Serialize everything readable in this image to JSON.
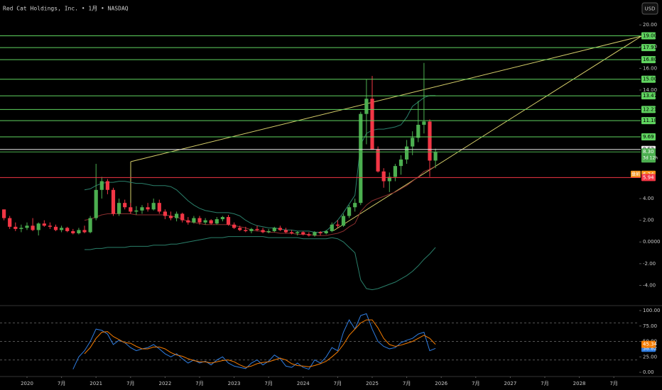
{
  "header": {
    "title": "Red Cat Holdings, Inc. • 1月 • NASDAQ",
    "currency": "USD"
  },
  "chart_data": [
    {
      "type": "candlestick",
      "x": [
        "2019-09",
        "2019-10",
        "2019-11",
        "2019-12",
        "2020-01",
        "2020-02",
        "2020-03",
        "2020-04",
        "2020-05",
        "2020-06",
        "2020-07",
        "2020-08",
        "2020-09",
        "2020-10",
        "2020-11",
        "2020-12",
        "2021-01",
        "2021-02",
        "2021-03",
        "2021-04",
        "2021-05",
        "2021-06",
        "2021-07",
        "2021-08",
        "2021-09",
        "2021-10",
        "2021-11",
        "2021-12",
        "2022-01",
        "2022-02",
        "2022-03",
        "2022-04",
        "2022-05",
        "2022-06",
        "2022-07",
        "2022-08",
        "2022-09",
        "2022-10",
        "2022-11",
        "2022-12",
        "2023-01",
        "2023-02",
        "2023-03",
        "2023-04",
        "2023-05",
        "2023-06",
        "2023-07",
        "2023-08",
        "2023-09",
        "2023-10",
        "2023-11",
        "2023-12",
        "2024-01",
        "2024-02",
        "2024-03",
        "2024-04",
        "2024-05",
        "2024-06",
        "2024-07",
        "2024-08",
        "2024-09",
        "2024-10",
        "2024-11",
        "2024-12",
        "2025-01",
        "2025-02",
        "2025-03",
        "2025-04",
        "2025-05",
        "2025-06",
        "2025-07",
        "2025-08",
        "2025-09",
        "2025-10",
        "2025-11",
        "2025-12"
      ],
      "open": [
        3.0,
        2.2,
        1.4,
        1.2,
        1.3,
        1.5,
        1.1,
        1.7,
        1.5,
        1.4,
        1.1,
        1.3,
        1.0,
        0.8,
        1.1,
        0.9,
        2.2,
        4.8,
        5.6,
        4.8,
        2.6,
        3.6,
        3.2,
        2.8,
        2.9,
        3.2,
        3.0,
        3.6,
        2.8,
        2.4,
        2.2,
        2.6,
        2.0,
        1.8,
        2.2,
        1.8,
        2.0,
        1.7,
        2.1,
        2.3,
        1.6,
        1.3,
        1.1,
        1.0,
        1.2,
        1.1,
        0.9,
        1.0,
        1.3,
        1.1,
        0.9,
        0.8,
        0.9,
        0.7,
        0.6,
        0.9,
        0.8,
        1.0,
        1.6,
        1.5,
        2.4,
        3.2,
        3.6,
        11.8,
        13.2,
        8.5,
        6.5,
        5.6,
        6.0,
        7.0,
        7.6,
        8.8,
        9.6,
        10.8,
        11.1,
        7.5
      ],
      "high": [
        3.0,
        2.4,
        1.8,
        1.6,
        1.8,
        2.2,
        1.8,
        2.0,
        1.8,
        1.6,
        1.5,
        1.4,
        1.2,
        1.3,
        1.5,
        2.4,
        7.2,
        6.0,
        5.8,
        5.0,
        4.0,
        3.9,
        3.6,
        3.3,
        3.4,
        3.6,
        4.0,
        3.9,
        3.0,
        2.8,
        2.8,
        2.7,
        2.3,
        2.4,
        2.4,
        2.2,
        2.1,
        2.3,
        2.4,
        2.5,
        1.8,
        1.5,
        1.4,
        1.3,
        1.5,
        1.3,
        1.2,
        1.4,
        1.5,
        1.3,
        1.1,
        1.0,
        1.0,
        0.9,
        1.0,
        1.0,
        1.1,
        1.8,
        2.0,
        2.6,
        3.4,
        4.0,
        12.0,
        15.0,
        15.3,
        8.8,
        6.8,
        6.4,
        7.2,
        8.0,
        9.4,
        10.2,
        13.0,
        16.5,
        11.3,
        8.6
      ],
      "low": [
        2.0,
        1.2,
        1.0,
        0.9,
        1.1,
        1.0,
        0.6,
        1.4,
        1.2,
        1.0,
        0.9,
        0.9,
        0.7,
        0.7,
        0.8,
        0.8,
        2.0,
        4.0,
        4.4,
        2.4,
        2.4,
        3.0,
        2.6,
        2.5,
        2.6,
        2.8,
        2.9,
        2.6,
        2.1,
        2.0,
        1.9,
        1.8,
        1.6,
        1.7,
        1.6,
        1.6,
        1.6,
        1.6,
        1.9,
        1.5,
        1.2,
        1.0,
        0.9,
        0.8,
        1.0,
        0.8,
        0.8,
        0.9,
        1.0,
        0.8,
        0.7,
        0.6,
        0.6,
        0.5,
        0.5,
        0.6,
        0.7,
        0.9,
        1.3,
        1.4,
        2.2,
        2.8,
        3.4,
        9.0,
        8.5,
        6.4,
        5.0,
        4.6,
        5.6,
        6.2,
        7.2,
        8.0,
        9.2,
        10.0,
        6.0,
        6.8
      ],
      "close": [
        2.2,
        1.4,
        1.2,
        1.3,
        1.5,
        1.1,
        1.7,
        1.5,
        1.4,
        1.1,
        1.3,
        1.0,
        0.8,
        1.1,
        0.9,
        2.2,
        4.8,
        5.6,
        4.8,
        2.6,
        3.6,
        3.2,
        2.8,
        2.9,
        3.2,
        3.0,
        3.6,
        2.8,
        2.4,
        2.2,
        2.6,
        2.0,
        1.8,
        2.2,
        1.8,
        2.0,
        1.7,
        2.1,
        2.3,
        1.6,
        1.3,
        1.1,
        1.0,
        1.2,
        1.1,
        0.9,
        1.0,
        1.3,
        1.1,
        0.9,
        0.8,
        0.9,
        0.7,
        0.6,
        0.9,
        0.8,
        1.0,
        1.6,
        1.5,
        2.4,
        3.2,
        3.6,
        11.8,
        13.2,
        8.5,
        6.5,
        5.6,
        6.0,
        7.0,
        7.6,
        8.8,
        9.6,
        10.8,
        11.1,
        7.5,
        8.3
      ],
      "up_color": "#4caf50",
      "down_color": "#f23645",
      "series": [
        {
          "color": "#2a7f6a",
          "values": [
            null,
            null,
            null,
            null,
            null,
            null,
            null,
            null,
            null,
            null,
            null,
            null,
            null,
            null,
            4.8,
            4.9,
            5.2,
            5.4,
            5.5,
            5.5,
            5.6,
            5.6,
            5.5,
            5.4,
            5.4,
            5.3,
            5.2,
            5.2,
            5.2,
            5.1,
            4.8,
            4.3,
            3.8,
            3.4,
            3.1,
            2.9,
            2.8,
            2.7,
            2.7,
            2.7,
            2.6,
            2.4,
            2.0,
            1.7,
            1.5,
            1.4,
            1.3,
            1.3,
            1.2,
            1.1,
            1.1,
            1.0,
            1.0,
            1.0,
            0.9,
            0.9,
            1.0,
            1.5,
            2.0,
            2.7,
            3.5,
            4.3,
            9.0,
            10.0,
            10.3,
            10.4,
            10.4,
            10.5,
            10.6,
            10.8,
            11.5,
            12.5,
            12.9,
            13.3,
            13.5,
            13.5
          ]
        },
        {
          "color": "#8a2e2e",
          "values": [
            null,
            null,
            null,
            null,
            null,
            null,
            null,
            null,
            null,
            null,
            null,
            null,
            null,
            null,
            2.0,
            2.1,
            2.3,
            2.5,
            2.6,
            2.6,
            2.6,
            2.6,
            2.6,
            2.5,
            2.5,
            2.5,
            2.5,
            2.5,
            2.5,
            2.4,
            2.3,
            2.1,
            1.9,
            1.8,
            1.7,
            1.6,
            1.6,
            1.6,
            1.6,
            1.6,
            1.5,
            1.4,
            1.3,
            1.1,
            1.0,
            1.0,
            0.9,
            0.9,
            0.8,
            0.8,
            0.8,
            0.7,
            0.7,
            0.7,
            0.6,
            0.6,
            0.6,
            0.7,
            0.8,
            1.0,
            1.4,
            1.7,
            2.8,
            3.4,
            3.8,
            4.0,
            4.2,
            4.4,
            4.6,
            4.9,
            5.2,
            5.6,
            6.0,
            6.5,
            6.7,
            7.0
          ]
        },
        {
          "color": "#2a7f6a",
          "values": [
            null,
            null,
            null,
            null,
            null,
            null,
            null,
            null,
            null,
            null,
            null,
            null,
            null,
            null,
            -0.7,
            -0.7,
            -0.6,
            -0.6,
            -0.5,
            -0.5,
            -0.5,
            -0.5,
            -0.4,
            -0.4,
            -0.4,
            -0.4,
            -0.3,
            -0.3,
            -0.3,
            -0.2,
            -0.2,
            -0.1,
            0.0,
            0.1,
            0.2,
            0.3,
            0.4,
            0.4,
            0.4,
            0.5,
            0.5,
            0.5,
            0.5,
            0.5,
            0.5,
            0.5,
            0.4,
            0.4,
            0.4,
            0.4,
            0.4,
            0.4,
            0.3,
            0.3,
            0.3,
            0.3,
            0.3,
            0.4,
            0.3,
            0.0,
            -0.5,
            -1.0,
            -3.5,
            -4.3,
            -4.4,
            -4.3,
            -4.1,
            -3.9,
            -3.7,
            -3.4,
            -3.1,
            -2.7,
            -2.2,
            -1.6,
            -1.1,
            -0.5
          ]
        }
      ],
      "ylim": [
        -5.8,
        22.3
      ],
      "yticks": [
        {
          "value": 20,
          "label": "20.00"
        },
        {
          "value": 18,
          "label": "18.00"
        },
        {
          "value": 16,
          "label": "16.00"
        },
        {
          "value": 14,
          "label": "14.00"
        },
        {
          "value": 4,
          "label": "4.00"
        },
        {
          "value": 2,
          "label": "2.00"
        },
        {
          "value": 0,
          "label": "0.0000"
        },
        {
          "value": -2,
          "label": "-2.00"
        },
        {
          "value": -4,
          "label": "-4.00"
        }
      ],
      "xticks": [
        {
          "value": "2020-01",
          "label": "2020"
        },
        {
          "value": "2020-07",
          "label": "7月"
        },
        {
          "value": "2021-01",
          "label": "2021"
        },
        {
          "value": "2021-07",
          "label": "7月"
        },
        {
          "value": "2022-01",
          "label": "2022"
        },
        {
          "value": "2022-07",
          "label": "7月"
        },
        {
          "value": "2023-01",
          "label": "2023"
        },
        {
          "value": "2023-07",
          "label": "7月"
        },
        {
          "value": "2024-01",
          "label": "2024"
        },
        {
          "value": "2024-07",
          "label": "7月"
        },
        {
          "value": "2025-01",
          "label": "2025"
        },
        {
          "value": "2025-07",
          "label": "7月"
        },
        {
          "value": "2026-01",
          "label": "2026"
        },
        {
          "value": "2026-07",
          "label": "7月"
        },
        {
          "value": "2027-01",
          "label": "2027"
        },
        {
          "value": "2027-07",
          "label": "7月"
        },
        {
          "value": "2028-01",
          "label": "2028"
        },
        {
          "value": "2028-07",
          "label": "7月"
        }
      ],
      "levels": [
        {
          "value": 19,
          "label": "19.00",
          "color": "#5fd35f",
          "text_color": "#000"
        },
        {
          "value": 17.91,
          "label": "17.91",
          "color": "#5fd35f",
          "text_color": "#000"
        },
        {
          "value": 16.8,
          "label": "16.80",
          "color": "#5fd35f",
          "text_color": "#000"
        },
        {
          "value": 15,
          "label": "15.00",
          "color": "#5fd35f",
          "text_color": "#000"
        },
        {
          "value": 13.47,
          "label": "13.47",
          "color": "#5fd35f",
          "text_color": "#000"
        },
        {
          "value": 12.21,
          "label": "12.21",
          "color": "#5fd35f",
          "text_color": "#000"
        },
        {
          "value": 11.18,
          "label": "11.18",
          "color": "#5fd35f",
          "text_color": "#000"
        },
        {
          "value": 9.69,
          "label": "9.69",
          "color": "#5fd35f",
          "text_color": "#000"
        },
        {
          "value": 8.53,
          "label": "8.53",
          "color": "#e8e8e8",
          "text_color": "#000"
        },
        {
          "value": 8.3,
          "label": "8.30",
          "color": "#4caf50",
          "text_color": "#fff",
          "countdown": "3d 12h"
        },
        {
          "value": 6.24,
          "label": "6.24",
          "color": "#f7931a",
          "text_color": "#fff",
          "line": false,
          "tag": "盘前"
        },
        {
          "value": 5.94,
          "label": "5.94",
          "color": "#f23645",
          "text_color": "#fff"
        }
      ]
    },
    {
      "type": "line",
      "x": [
        "2019-09",
        "2019-10",
        "2019-11",
        "2019-12",
        "2020-01",
        "2020-02",
        "2020-03",
        "2020-04",
        "2020-05",
        "2020-06",
        "2020-07",
        "2020-08",
        "2020-09",
        "2020-10",
        "2020-11",
        "2020-12",
        "2021-01",
        "2021-02",
        "2021-03",
        "2021-04",
        "2021-05",
        "2021-06",
        "2021-07",
        "2021-08",
        "2021-09",
        "2021-10",
        "2021-11",
        "2021-12",
        "2022-01",
        "2022-02",
        "2022-03",
        "2022-04",
        "2022-05",
        "2022-06",
        "2022-07",
        "2022-08",
        "2022-09",
        "2022-10",
        "2022-11",
        "2022-12",
        "2023-01",
        "2023-02",
        "2023-03",
        "2023-04",
        "2023-05",
        "2023-06",
        "2023-07",
        "2023-08",
        "2023-09",
        "2023-10",
        "2023-11",
        "2023-12",
        "2024-01",
        "2024-02",
        "2024-03",
        "2024-04",
        "2024-05",
        "2024-06",
        "2024-07",
        "2024-08",
        "2024-09",
        "2024-10",
        "2024-11",
        "2024-12",
        "2025-01",
        "2025-02",
        "2025-03",
        "2025-04",
        "2025-05",
        "2025-06",
        "2025-07",
        "2025-08",
        "2025-09",
        "2025-10",
        "2025-11",
        "2025-12"
      ],
      "series": [
        {
          "color": "#2f7de1",
          "values": [
            null,
            null,
            null,
            null,
            null,
            null,
            null,
            null,
            null,
            null,
            null,
            null,
            5,
            25,
            35,
            50,
            70,
            68,
            62,
            45,
            52,
            48,
            40,
            35,
            38,
            40,
            45,
            38,
            30,
            25,
            30,
            22,
            15,
            20,
            15,
            18,
            12,
            20,
            25,
            15,
            10,
            8,
            6,
            15,
            20,
            12,
            18,
            28,
            22,
            10,
            8,
            15,
            8,
            5,
            20,
            15,
            25,
            40,
            35,
            65,
            85,
            70,
            92,
            95,
            70,
            50,
            42,
            38,
            40,
            48,
            52,
            55,
            62,
            65,
            35,
            38.82
          ]
        },
        {
          "color": "#f57c00",
          "values": [
            null,
            null,
            null,
            null,
            null,
            null,
            null,
            null,
            null,
            null,
            null,
            null,
            null,
            null,
            30,
            40,
            55,
            65,
            66,
            58,
            53,
            48,
            47,
            42,
            38,
            38,
            41,
            41,
            38,
            32,
            28,
            26,
            22,
            19,
            17,
            17,
            15,
            17,
            19,
            20,
            17,
            12,
            8,
            10,
            14,
            16,
            17,
            20,
            23,
            20,
            14,
            11,
            10,
            9,
            11,
            14,
            18,
            25,
            33,
            45,
            60,
            70,
            80,
            85,
            85,
            72,
            55,
            45,
            42,
            44,
            47,
            50,
            55,
            60,
            55,
            45.34
          ]
        }
      ],
      "ylim": [
        -5.7,
        106.9
      ],
      "yticks": [
        {
          "value": 100,
          "label": "100.00"
        },
        {
          "value": 75,
          "label": "75.00"
        },
        {
          "value": 50,
          "label": "50.00"
        },
        {
          "value": 25,
          "label": "25.00"
        },
        {
          "value": 0,
          "label": "0.00"
        }
      ],
      "bands": [
        80,
        50,
        20
      ]
    }
  ]
}
